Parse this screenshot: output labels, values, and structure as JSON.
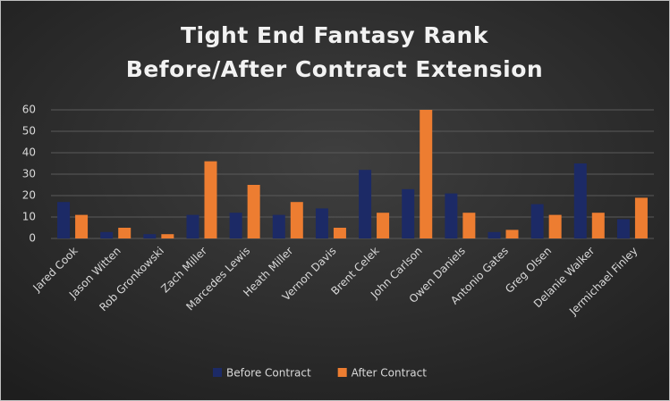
{
  "chart_data": {
    "type": "bar",
    "title": [
      "Tight End Fantasy Rank",
      "Before/After Contract Extension"
    ],
    "categories": [
      "Jared Cook",
      "Jason Witten",
      "Rob Gronkowski",
      "Zach Miller",
      "Marcedes Lewis",
      "Heath Miller",
      "Vernon Davis",
      "Brent Celek",
      "John Carlson",
      "Owen Daniels",
      "Antonio Gates",
      "Greg Olsen",
      "Delanie Walker",
      "Jermichael Finley"
    ],
    "series": [
      {
        "name": "Before Contract",
        "color": "#1c2a66",
        "values": [
          17,
          3,
          2,
          11,
          12,
          11,
          14,
          32,
          23,
          21,
          3,
          16,
          35,
          9
        ]
      },
      {
        "name": "After Contract",
        "color": "#ed7d31",
        "values": [
          11,
          5,
          2,
          36,
          25,
          17,
          5,
          12,
          60,
          12,
          4,
          11,
          12,
          19
        ]
      }
    ],
    "ylim": [
      0,
      60
    ],
    "yticks": [
      0,
      10,
      20,
      30,
      40,
      50,
      60
    ],
    "grid": true,
    "legend": "bottom"
  }
}
